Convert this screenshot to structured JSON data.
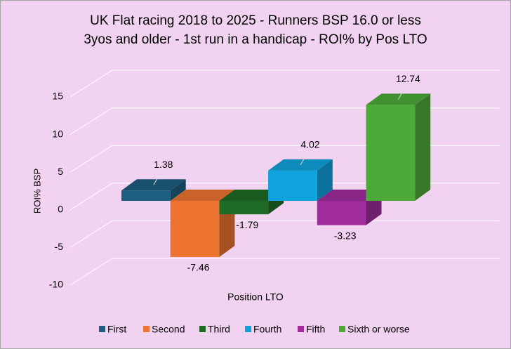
{
  "chart_data": {
    "type": "bar3d",
    "title": [
      "UK Flat racing 2018 to 2025 - Runners BSP 16.0 or less",
      "3yos and older - 1st run in a handicap - ROI% by Pos LTO"
    ],
    "y_label": "ROI% BSP",
    "x_label": "Position LTO",
    "series": [
      {
        "name": "First",
        "color": "#1d5f80",
        "values": [
          1.38
        ]
      },
      {
        "name": "Second",
        "color": "#ec7430",
        "values": [
          -7.46
        ]
      },
      {
        "name": "Third",
        "color": "#1f6b26",
        "values": [
          -1.79
        ]
      },
      {
        "name": "Fourth",
        "color": "#10a2dc",
        "values": [
          4.02
        ]
      },
      {
        "name": "Fifth",
        "color": "#a02c9c",
        "values": [
          -3.23
        ]
      },
      {
        "name": "Sixth or worse",
        "color": "#4eaa38",
        "values": [
          12.74
        ]
      }
    ],
    "ylim": [
      -10,
      15
    ],
    "yticks": [
      -10,
      -5,
      0,
      5,
      10,
      15
    ],
    "grid": true,
    "label_color": "#ff0000"
  }
}
